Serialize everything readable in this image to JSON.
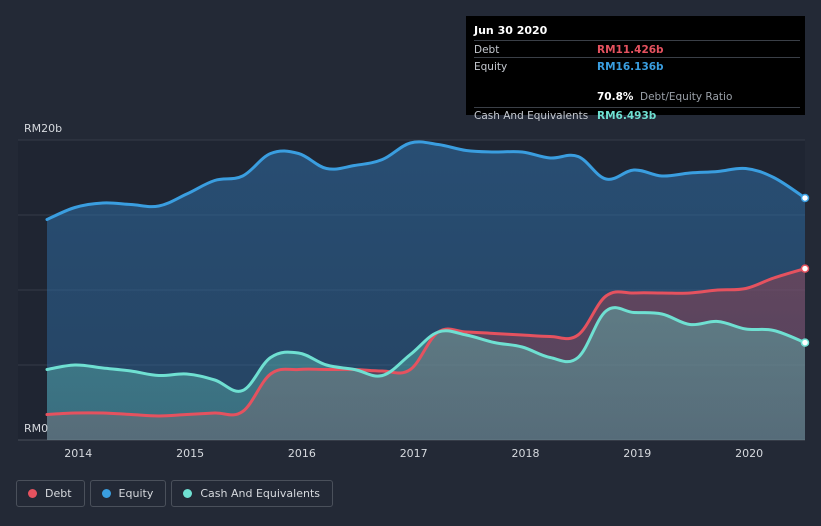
{
  "tooltip": {
    "date": "Jun 30 2020",
    "debt_label": "Debt",
    "debt_value": "RM11.426b",
    "equity_label": "Equity",
    "equity_value": "RM16.136b",
    "ratio_value": "70.8%",
    "ratio_label": "Debt/Equity Ratio",
    "cash_label": "Cash And Equivalents",
    "cash_value": "RM6.493b"
  },
  "legend": {
    "debt": "Debt",
    "equity": "Equity",
    "cash": "Cash And Equivalents"
  },
  "colors": {
    "debt": "#e5525f",
    "equity": "#3a9ee0",
    "cash": "#6fe0d2",
    "background": "#232936"
  },
  "chart_data": {
    "type": "area",
    "title": "",
    "xlabel": "",
    "ylabel": "",
    "ylim": [
      0,
      20
    ],
    "xlim": [
      2013.72,
      2020.5
    ],
    "y_tick_labels": [
      {
        "value": 20,
        "label": "RM20b"
      },
      {
        "value": 0,
        "label": "RM0"
      }
    ],
    "gridlines": [
      5,
      10,
      15
    ],
    "x_ticks": [
      2014,
      2015,
      2016,
      2017,
      2018,
      2019,
      2020
    ],
    "x_tick_labels": [
      "2014",
      "2015",
      "2016",
      "2017",
      "2018",
      "2019",
      "2020"
    ],
    "series": [
      {
        "name": "Equity",
        "color": "#3a9ee0",
        "x": [
          2013.72,
          2013.97,
          2014.22,
          2014.47,
          2014.72,
          2014.97,
          2015.22,
          2015.47,
          2015.72,
          2015.97,
          2016.22,
          2016.47,
          2016.72,
          2016.97,
          2017.22,
          2017.47,
          2017.72,
          2017.97,
          2018.22,
          2018.47,
          2018.72,
          2018.97,
          2019.22,
          2019.47,
          2019.72,
          2019.97,
          2020.22,
          2020.5
        ],
        "values": [
          14.7,
          15.5,
          15.8,
          15.7,
          15.6,
          16.4,
          17.3,
          17.6,
          19.1,
          19.1,
          18.1,
          18.3,
          18.7,
          19.8,
          19.7,
          19.3,
          19.2,
          19.2,
          18.8,
          18.9,
          17.4,
          18.0,
          17.6,
          17.8,
          17.9,
          18.1,
          17.5,
          16.136
        ]
      },
      {
        "name": "Debt",
        "color": "#e5525f",
        "x": [
          2013.72,
          2013.97,
          2014.22,
          2014.47,
          2014.72,
          2014.97,
          2015.22,
          2015.47,
          2015.72,
          2015.97,
          2016.22,
          2016.47,
          2016.72,
          2016.97,
          2017.22,
          2017.47,
          2017.72,
          2017.97,
          2018.22,
          2018.47,
          2018.72,
          2018.97,
          2019.22,
          2019.47,
          2019.72,
          2019.97,
          2020.22,
          2020.5
        ],
        "values": [
          1.7,
          1.8,
          1.8,
          1.7,
          1.6,
          1.7,
          1.8,
          1.9,
          4.4,
          4.7,
          4.7,
          4.7,
          4.6,
          4.7,
          7.2,
          7.2,
          7.1,
          7.0,
          6.9,
          7.0,
          9.6,
          9.8,
          9.8,
          9.8,
          10.0,
          10.1,
          10.8,
          11.426
        ]
      },
      {
        "name": "Cash And Equivalents",
        "color": "#6fe0d2",
        "x": [
          2013.72,
          2013.97,
          2014.22,
          2014.47,
          2014.72,
          2014.97,
          2015.22,
          2015.47,
          2015.72,
          2015.97,
          2016.22,
          2016.47,
          2016.72,
          2016.97,
          2017.22,
          2017.47,
          2017.72,
          2017.97,
          2018.22,
          2018.47,
          2018.72,
          2018.97,
          2019.22,
          2019.47,
          2019.72,
          2019.97,
          2020.22,
          2020.5
        ],
        "values": [
          4.7,
          5.0,
          4.8,
          4.6,
          4.3,
          4.4,
          4.0,
          3.3,
          5.5,
          5.8,
          5.0,
          4.7,
          4.3,
          5.7,
          7.2,
          7.0,
          6.5,
          6.2,
          5.5,
          5.5,
          8.6,
          8.5,
          8.4,
          7.7,
          7.9,
          7.4,
          7.3,
          6.493
        ]
      }
    ]
  }
}
